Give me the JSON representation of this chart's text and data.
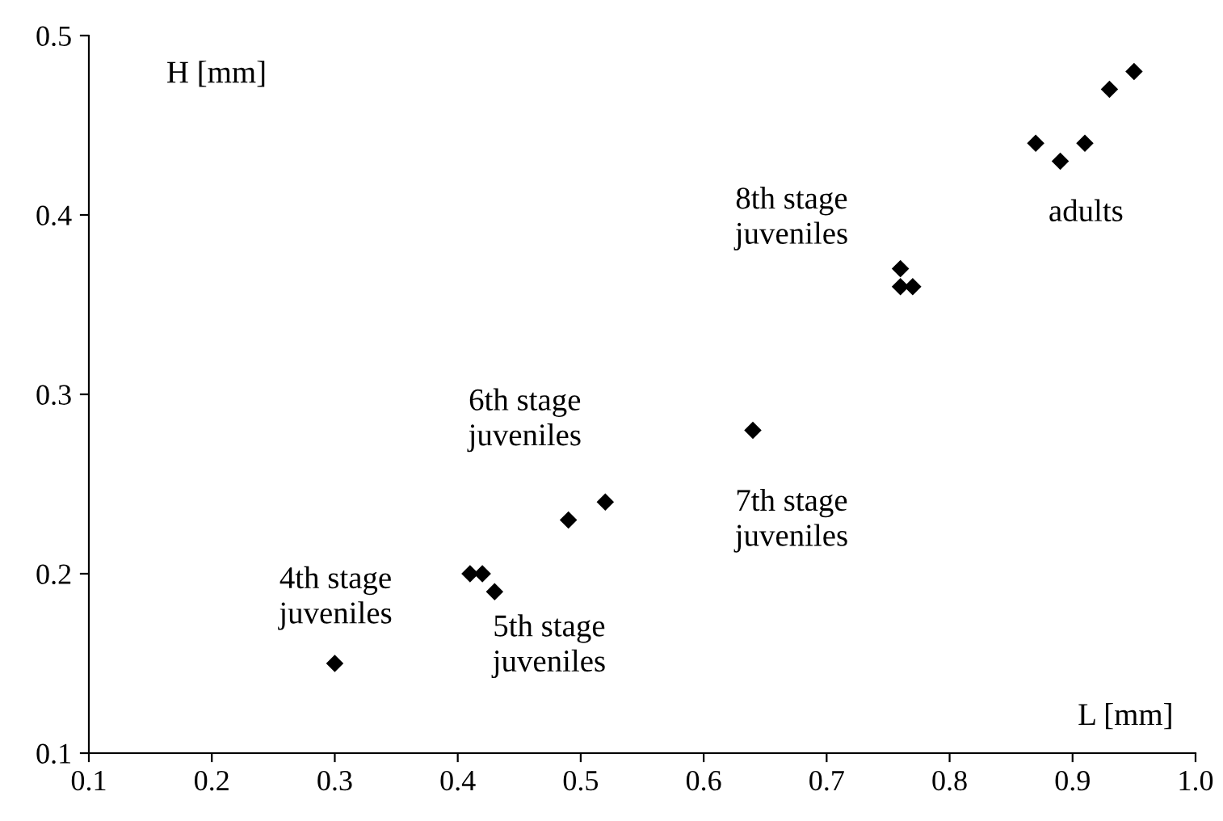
{
  "chart_data": {
    "type": "scatter",
    "xlabel": "L [mm]",
    "ylabel": "H [mm]",
    "x": [
      0.3,
      0.41,
      0.42,
      0.43,
      0.49,
      0.52,
      0.64,
      0.76,
      0.76,
      0.77,
      0.87,
      0.89,
      0.91,
      0.93,
      0.95
    ],
    "values": [
      0.15,
      0.2,
      0.2,
      0.19,
      0.23,
      0.24,
      0.28,
      0.37,
      0.36,
      0.36,
      0.44,
      0.43,
      0.44,
      0.47,
      0.48
    ],
    "color": "#000000",
    "marker": "diamond",
    "xlim": [
      0.1,
      1.0
    ],
    "ylim": [
      0.1,
      0.5
    ],
    "xticks": [
      {
        "value": 0.1,
        "label": "0.1"
      },
      {
        "value": 0.2,
        "label": "0.2"
      },
      {
        "value": 0.3,
        "label": "0.3"
      },
      {
        "value": 0.4,
        "label": "0.4"
      },
      {
        "value": 0.5,
        "label": "0.5"
      },
      {
        "value": 0.6,
        "label": "0.6"
      },
      {
        "value": 0.7,
        "label": "0.7"
      },
      {
        "value": 0.8,
        "label": "0.8"
      },
      {
        "value": 0.9,
        "label": "0.9"
      },
      {
        "value": 1.0,
        "label": "1.0"
      }
    ],
    "yticks": [
      {
        "value": 0.1,
        "label": "0.1"
      },
      {
        "value": 0.2,
        "label": "0.2"
      },
      {
        "value": 0.3,
        "label": "0.3"
      },
      {
        "value": 0.4,
        "label": "0.4"
      },
      {
        "value": 0.5,
        "label": "0.5"
      }
    ],
    "grid": false,
    "annotations": [
      "4th stage\njuveniles",
      "5th stage\njuveniles",
      "6th stage\njuveniles",
      "7th stage\njuveniles",
      "8th stage\njuveniles",
      "adults"
    ]
  }
}
